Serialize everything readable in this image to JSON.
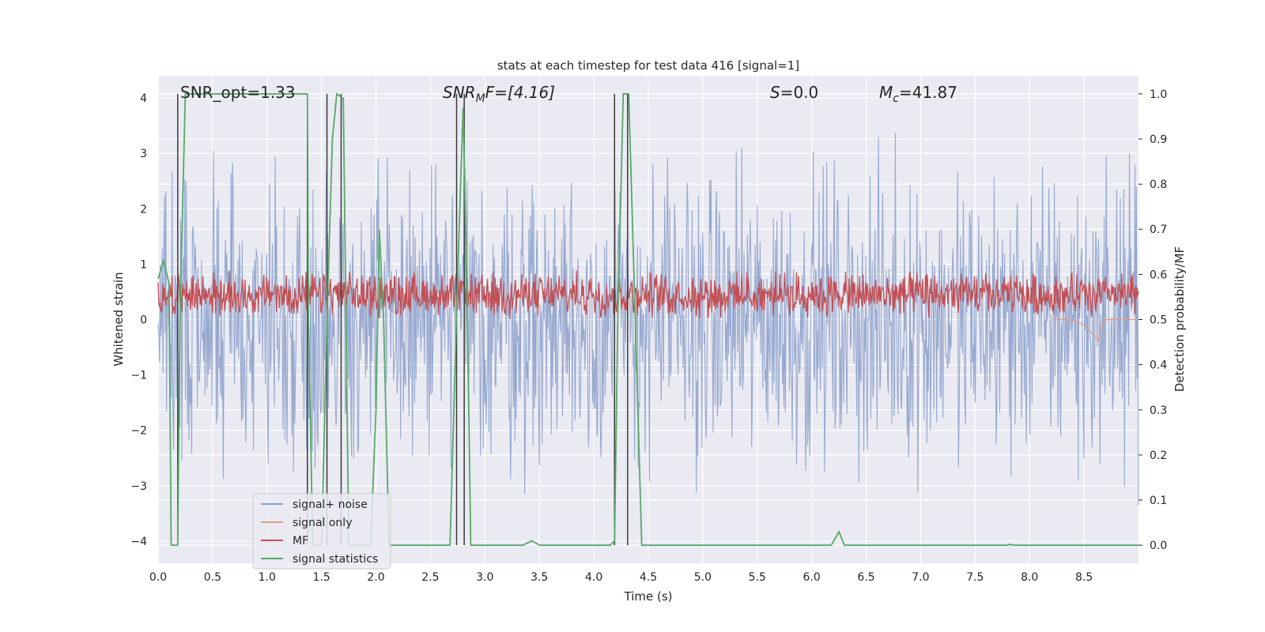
{
  "chart_data": {
    "type": "line",
    "title": "stats at each timestep for test data 416 [signal=1]",
    "xlabel": "Time (s)",
    "ylabel_left": "Whitened strain",
    "ylabel_right": "Detection probability/MF",
    "xlim": [
      0,
      9
    ],
    "ylim_left": [
      -4.4,
      4.4
    ],
    "ylim_right": [
      -0.04,
      1.04
    ],
    "x_ticks": [
      "0.0",
      "0.5",
      "1.0",
      "1.5",
      "2.0",
      "2.5",
      "3.0",
      "3.5",
      "4.0",
      "4.5",
      "5.0",
      "5.5",
      "6.0",
      "6.5",
      "7.0",
      "7.5",
      "8.0",
      "8.5"
    ],
    "y_left_ticks": [
      "−4",
      "−3",
      "−2",
      "−1",
      "0",
      "1",
      "2",
      "3",
      "4"
    ],
    "y_right_ticks": [
      "0.0",
      "0.1",
      "0.2",
      "0.3",
      "0.4",
      "0.5",
      "0.6",
      "0.7",
      "0.8",
      "0.9",
      "1.0"
    ],
    "grid": true,
    "legend_position": "lower-left",
    "annotations": {
      "snr_opt": "SNR_opt=1.33",
      "snr_mf_main": "SNR",
      "snr_mf_sub": "M",
      "snr_mf_rest": "F=[4.16]",
      "s_italic": "S",
      "s_rest": "=0.0",
      "mc_main": "M",
      "mc_sub": "c",
      "mc_rest": "=41.87"
    },
    "series": [
      {
        "name": "signal+ noise",
        "color": "#8da1cb",
        "axis": "left",
        "description_amplitude": "noise band roughly between -3.5 and 4.0 whitened strain"
      },
      {
        "name": "signal only",
        "color": "#e39d83",
        "axis": "left",
        "points": [
          [
            8.2,
            0.0
          ],
          [
            8.35,
            0.0
          ],
          [
            8.45,
            -0.05
          ],
          [
            8.5,
            -0.1
          ],
          [
            8.55,
            -0.2
          ],
          [
            8.6,
            -0.3
          ],
          [
            8.63,
            -0.38
          ],
          [
            8.65,
            -0.1
          ],
          [
            8.7,
            0.0
          ],
          [
            9.0,
            0.0
          ]
        ]
      },
      {
        "name": "MF",
        "color": "#c44e52",
        "axis": "right",
        "description_amplitude": "fluctuates between 0.5 and 0.62 detection probability"
      },
      {
        "name": "signal statistics",
        "color": "#55a868",
        "axis": "right",
        "points": [
          [
            0.0,
            0.59
          ],
          [
            0.05,
            0.63
          ],
          [
            0.1,
            0.58
          ],
          [
            0.12,
            0.0
          ],
          [
            0.18,
            0.0
          ],
          [
            0.2,
            0.5
          ],
          [
            0.25,
            1.0
          ],
          [
            1.37,
            1.0
          ],
          [
            1.38,
            0.5
          ],
          [
            1.42,
            0.0
          ],
          [
            1.5,
            0.0
          ],
          [
            1.55,
            0.5
          ],
          [
            1.6,
            0.9
          ],
          [
            1.64,
            1.0
          ],
          [
            1.7,
            0.99
          ],
          [
            1.75,
            0.0
          ],
          [
            1.95,
            0.0
          ],
          [
            2.0,
            0.3
          ],
          [
            2.03,
            0.7
          ],
          [
            2.07,
            0.5
          ],
          [
            2.12,
            0.0
          ],
          [
            2.68,
            0.0
          ],
          [
            2.75,
            0.6
          ],
          [
            2.8,
            0.97
          ],
          [
            2.84,
            0.5
          ],
          [
            2.87,
            0.0
          ],
          [
            3.35,
            0.0
          ],
          [
            3.43,
            0.01
          ],
          [
            3.5,
            0.0
          ],
          [
            4.15,
            0.0
          ],
          [
            4.19,
            0.01
          ],
          [
            4.22,
            0.5
          ],
          [
            4.27,
            1.0
          ],
          [
            4.32,
            1.0
          ],
          [
            4.38,
            0.5
          ],
          [
            4.44,
            0.0
          ],
          [
            6.18,
            0.0
          ],
          [
            6.25,
            0.03
          ],
          [
            6.3,
            0.0
          ],
          [
            7.8,
            0.0
          ],
          [
            7.82,
            0.002
          ],
          [
            7.85,
            0.0
          ],
          [
            9.0,
            0.0
          ]
        ]
      }
    ],
    "vertical_lines_x": [
      0.18,
      1.37,
      1.55,
      1.68,
      2.74,
      2.81,
      4.19,
      4.31
    ],
    "vertical_line_color": "#3a3a3a"
  }
}
